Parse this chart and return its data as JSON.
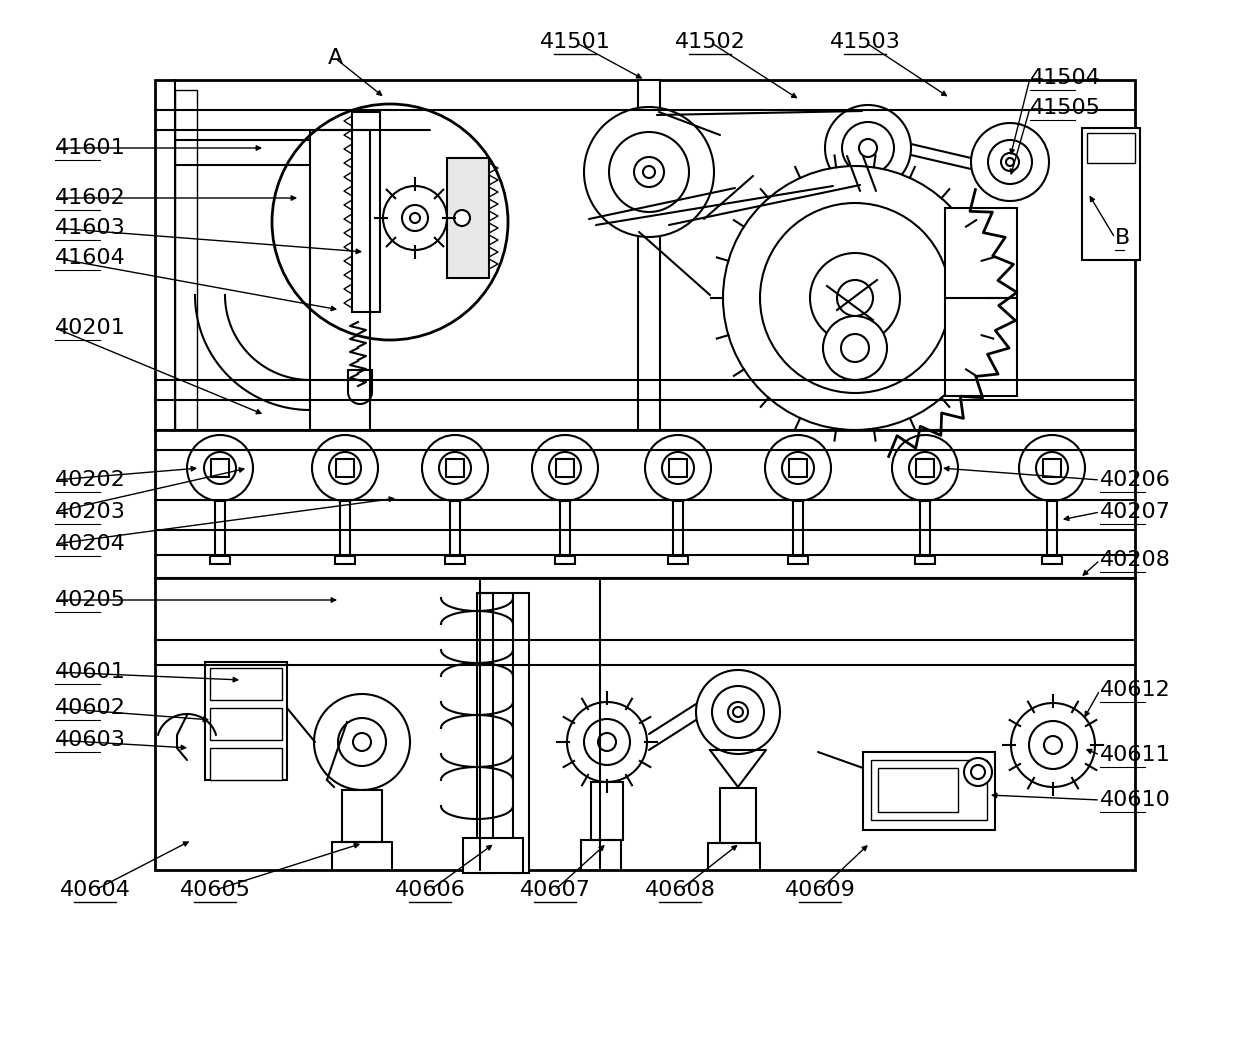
{
  "bg_color": "#ffffff",
  "figsize": [
    12.4,
    10.43
  ],
  "dpi": 100,
  "label_specs": [
    [
      "A",
      335,
      58,
      385,
      98,
      false,
      "center"
    ],
    [
      "B",
      1115,
      238,
      1088,
      193,
      false,
      "left"
    ],
    [
      "41501",
      575,
      42,
      645,
      80,
      true,
      "center"
    ],
    [
      "41502",
      710,
      42,
      800,
      100,
      true,
      "center"
    ],
    [
      "41503",
      865,
      42,
      950,
      98,
      true,
      "center"
    ],
    [
      "41504",
      1030,
      78,
      1010,
      158,
      false,
      "left"
    ],
    [
      "41505",
      1030,
      108,
      1010,
      178,
      false,
      "left"
    ],
    [
      "41601",
      55,
      148,
      265,
      148,
      false,
      "left"
    ],
    [
      "41602",
      55,
      198,
      300,
      198,
      false,
      "left"
    ],
    [
      "41603",
      55,
      228,
      365,
      252,
      false,
      "left"
    ],
    [
      "41604",
      55,
      258,
      340,
      310,
      false,
      "left"
    ],
    [
      "40201",
      55,
      328,
      265,
      415,
      false,
      "left"
    ],
    [
      "40202",
      55,
      480,
      200,
      468,
      false,
      "left"
    ],
    [
      "40203",
      55,
      512,
      248,
      468,
      false,
      "left"
    ],
    [
      "40204",
      55,
      544,
      398,
      498,
      false,
      "left"
    ],
    [
      "40205",
      55,
      600,
      340,
      600,
      false,
      "left"
    ],
    [
      "40206",
      1100,
      480,
      940,
      468,
      false,
      "left"
    ],
    [
      "40207",
      1100,
      512,
      1060,
      520,
      false,
      "left"
    ],
    [
      "40208",
      1100,
      560,
      1080,
      578,
      false,
      "left"
    ],
    [
      "40601",
      55,
      672,
      242,
      680,
      false,
      "left"
    ],
    [
      "40602",
      55,
      708,
      212,
      720,
      false,
      "left"
    ],
    [
      "40603",
      55,
      740,
      190,
      748,
      false,
      "left"
    ],
    [
      "40604",
      95,
      890,
      192,
      840,
      true,
      "center"
    ],
    [
      "40605",
      215,
      890,
      363,
      843,
      true,
      "center"
    ],
    [
      "40606",
      430,
      890,
      495,
      843,
      true,
      "center"
    ],
    [
      "40607",
      555,
      890,
      607,
      843,
      true,
      "center"
    ],
    [
      "40608",
      680,
      890,
      740,
      843,
      true,
      "center"
    ],
    [
      "40609",
      820,
      890,
      870,
      843,
      true,
      "center"
    ],
    [
      "40610",
      1100,
      800,
      988,
      795,
      false,
      "left"
    ],
    [
      "40611",
      1100,
      755,
      1083,
      748,
      false,
      "left"
    ],
    [
      "40612",
      1100,
      690,
      1083,
      720,
      false,
      "left"
    ]
  ]
}
